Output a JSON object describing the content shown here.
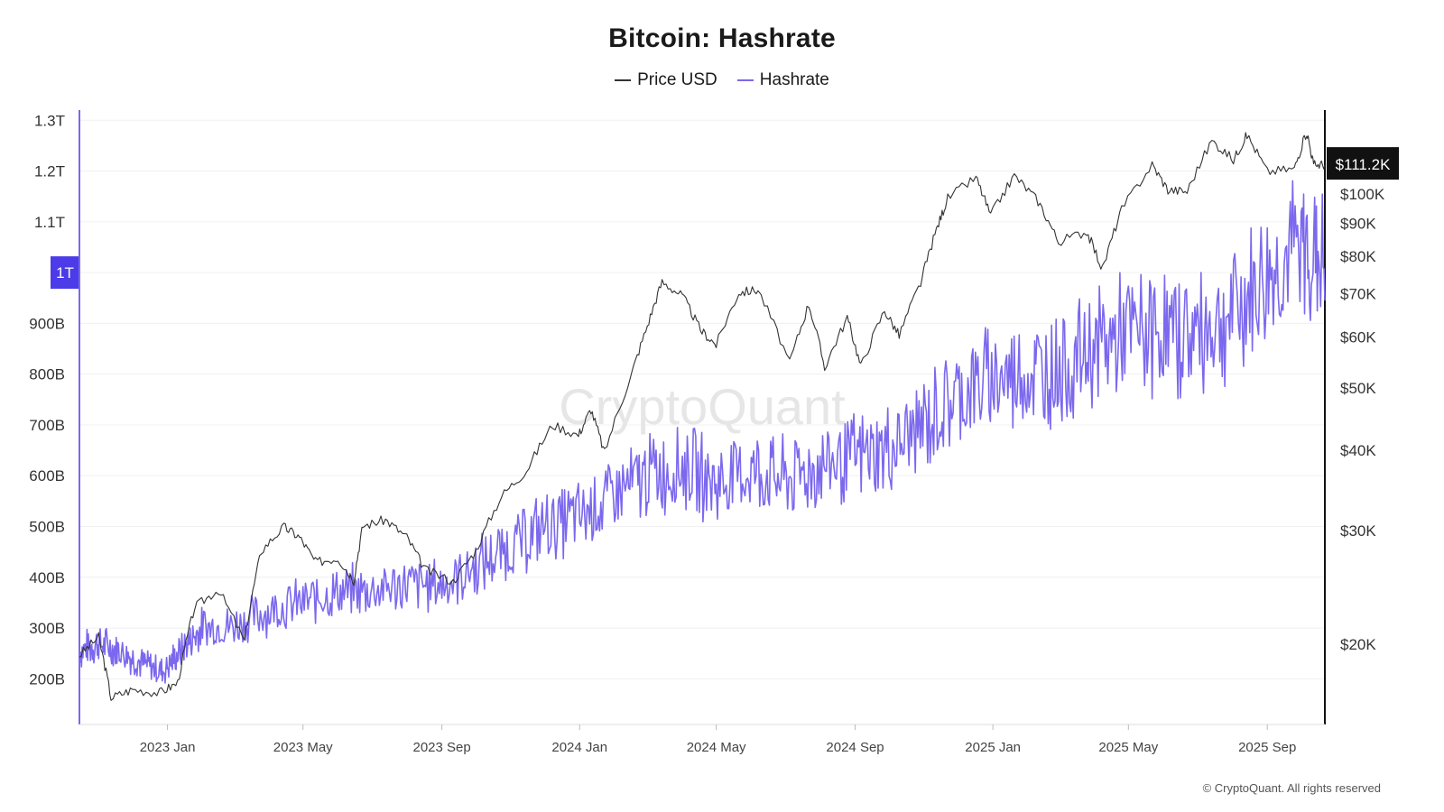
{
  "title": "Bitcoin: Hashrate",
  "legend": [
    {
      "label": "Price USD",
      "color": "#333333"
    },
    {
      "label": "Hashrate",
      "color": "#7b68ee"
    }
  ],
  "watermark": "CryptoQuant",
  "footer": "© CryptoQuant. All rights reserved",
  "chart_data": {
    "type": "line",
    "title": "Bitcoin: Hashrate",
    "x_range": [
      "2022-10-15",
      "2025-10-22"
    ],
    "x_ticks": [
      "2023 Jan",
      "2023 May",
      "2023 Sep",
      "2024 Jan",
      "2024 May",
      "2024 Sep",
      "2025 Jan",
      "2025 May",
      "2025 Sep"
    ],
    "left_axis": {
      "series": "Hashrate",
      "unit": "H/s",
      "range": [
        110000000000,
        1320000000000
      ],
      "ticks": [
        "200B",
        "300B",
        "400B",
        "500B",
        "600B",
        "700B",
        "800B",
        "900B",
        "1T",
        "1.1T",
        "1.2T",
        "1.3T"
      ],
      "tick_values": [
        200000000000,
        300000000000,
        400000000000,
        500000000000,
        600000000000,
        700000000000,
        800000000000,
        900000000000,
        1000000000000,
        1100000000000,
        1200000000000,
        1300000000000
      ],
      "highlight": "1T"
    },
    "right_axis": {
      "series": "Price USD",
      "scale": "log",
      "range": [
        15000,
        135000
      ],
      "ticks": [
        "$20K",
        "$30K",
        "$40K",
        "$50K",
        "$60K",
        "$70K",
        "$80K",
        "$90K",
        "$100K"
      ],
      "tick_values": [
        20000,
        30000,
        40000,
        50000,
        60000,
        70000,
        80000,
        90000,
        100000
      ],
      "current_label": "$111.2K",
      "current_value": 111200
    },
    "grid": true,
    "legend_position": "top-center",
    "series": [
      {
        "name": "Price USD",
        "color": "#333333",
        "points": [
          [
            "2022-10-15",
            19200
          ],
          [
            "2022-11-01",
            20500
          ],
          [
            "2022-11-12",
            16500
          ],
          [
            "2022-12-01",
            17000
          ],
          [
            "2022-12-25",
            16800
          ],
          [
            "2023-01-10",
            17400
          ],
          [
            "2023-01-25",
            22800
          ],
          [
            "2023-02-15",
            24300
          ],
          [
            "2023-03-10",
            20200
          ],
          [
            "2023-03-25",
            27900
          ],
          [
            "2023-04-14",
            30400
          ],
          [
            "2023-04-28",
            29300
          ],
          [
            "2023-05-12",
            26800
          ],
          [
            "2023-06-01",
            27200
          ],
          [
            "2023-06-15",
            25100
          ],
          [
            "2023-06-23",
            30500
          ],
          [
            "2023-07-13",
            31200
          ],
          [
            "2023-08-01",
            29300
          ],
          [
            "2023-08-17",
            26100
          ],
          [
            "2023-09-11",
            25000
          ],
          [
            "2023-10-01",
            27900
          ],
          [
            "2023-10-24",
            34000
          ],
          [
            "2023-11-15",
            37200
          ],
          [
            "2023-12-08",
            43800
          ],
          [
            "2023-12-31",
            42200
          ],
          [
            "2024-01-11",
            46300
          ],
          [
            "2024-01-23",
            39600
          ],
          [
            "2024-02-15",
            51800
          ],
          [
            "2024-03-01",
            62400
          ],
          [
            "2024-03-14",
            73000
          ],
          [
            "2024-04-01",
            69500
          ],
          [
            "2024-04-17",
            61500
          ],
          [
            "2024-05-01",
            58300
          ],
          [
            "2024-05-21",
            70300
          ],
          [
            "2024-06-07",
            71000
          ],
          [
            "2024-07-05",
            54500
          ],
          [
            "2024-07-22",
            67500
          ],
          [
            "2024-08-05",
            53800
          ],
          [
            "2024-08-25",
            64200
          ],
          [
            "2024-09-06",
            53900
          ],
          [
            "2024-09-27",
            65900
          ],
          [
            "2024-10-10",
            60300
          ],
          [
            "2024-10-29",
            72700
          ],
          [
            "2024-11-12",
            88000
          ],
          [
            "2024-11-22",
            98500
          ],
          [
            "2024-12-17",
            106000
          ],
          [
            "2024-12-30",
            92500
          ],
          [
            "2025-01-20",
            106800
          ],
          [
            "2025-02-10",
            97500
          ],
          [
            "2025-02-28",
            84300
          ],
          [
            "2025-03-25",
            87500
          ],
          [
            "2025-04-08",
            76300
          ],
          [
            "2025-04-25",
            94500
          ],
          [
            "2025-05-22",
            111000
          ],
          [
            "2025-06-05",
            101500
          ],
          [
            "2025-06-22",
            100900
          ],
          [
            "2025-07-14",
            121000
          ],
          [
            "2025-08-02",
            113000
          ],
          [
            "2025-08-14",
            123500
          ],
          [
            "2025-09-01",
            108300
          ],
          [
            "2025-09-25",
            109500
          ],
          [
            "2025-10-06",
            125000
          ],
          [
            "2025-10-12",
            111000
          ],
          [
            "2025-10-22",
            111200
          ]
        ]
      },
      {
        "name": "Hashrate",
        "color": "#7b68ee",
        "points": [
          [
            "2022-10-15",
            255000000000
          ],
          [
            "2022-11-01",
            270000000000
          ],
          [
            "2022-11-20",
            255000000000
          ],
          [
            "2022-12-10",
            230000000000
          ],
          [
            "2022-12-28",
            215000000000
          ],
          [
            "2023-01-15",
            260000000000
          ],
          [
            "2023-02-01",
            300000000000
          ],
          [
            "2023-03-01",
            305000000000
          ],
          [
            "2023-04-01",
            335000000000
          ],
          [
            "2023-05-01",
            350000000000
          ],
          [
            "2023-06-01",
            370000000000
          ],
          [
            "2023-07-01",
            375000000000
          ],
          [
            "2023-08-01",
            385000000000
          ],
          [
            "2023-09-01",
            385000000000
          ],
          [
            "2023-10-01",
            420000000000
          ],
          [
            "2023-11-01",
            460000000000
          ],
          [
            "2023-12-01",
            500000000000
          ],
          [
            "2024-01-01",
            520000000000
          ],
          [
            "2024-02-01",
            560000000000
          ],
          [
            "2024-03-01",
            600000000000
          ],
          [
            "2024-04-01",
            620000000000
          ],
          [
            "2024-05-01",
            585000000000
          ],
          [
            "2024-06-01",
            610000000000
          ],
          [
            "2024-07-01",
            590000000000
          ],
          [
            "2024-08-01",
            620000000000
          ],
          [
            "2024-09-01",
            635000000000
          ],
          [
            "2024-10-01",
            650000000000
          ],
          [
            "2024-11-01",
            700000000000
          ],
          [
            "2024-12-01",
            760000000000
          ],
          [
            "2025-01-01",
            790000000000
          ],
          [
            "2025-02-01",
            800000000000
          ],
          [
            "2025-03-01",
            810000000000
          ],
          [
            "2025-04-01",
            850000000000
          ],
          [
            "2025-05-01",
            880000000000
          ],
          [
            "2025-06-01",
            880000000000
          ],
          [
            "2025-07-01",
            880000000000
          ],
          [
            "2025-08-01",
            920000000000
          ],
          [
            "2025-09-01",
            990000000000
          ],
          [
            "2025-10-01",
            1050000000000
          ],
          [
            "2025-10-22",
            1020000000000
          ]
        ]
      }
    ]
  }
}
